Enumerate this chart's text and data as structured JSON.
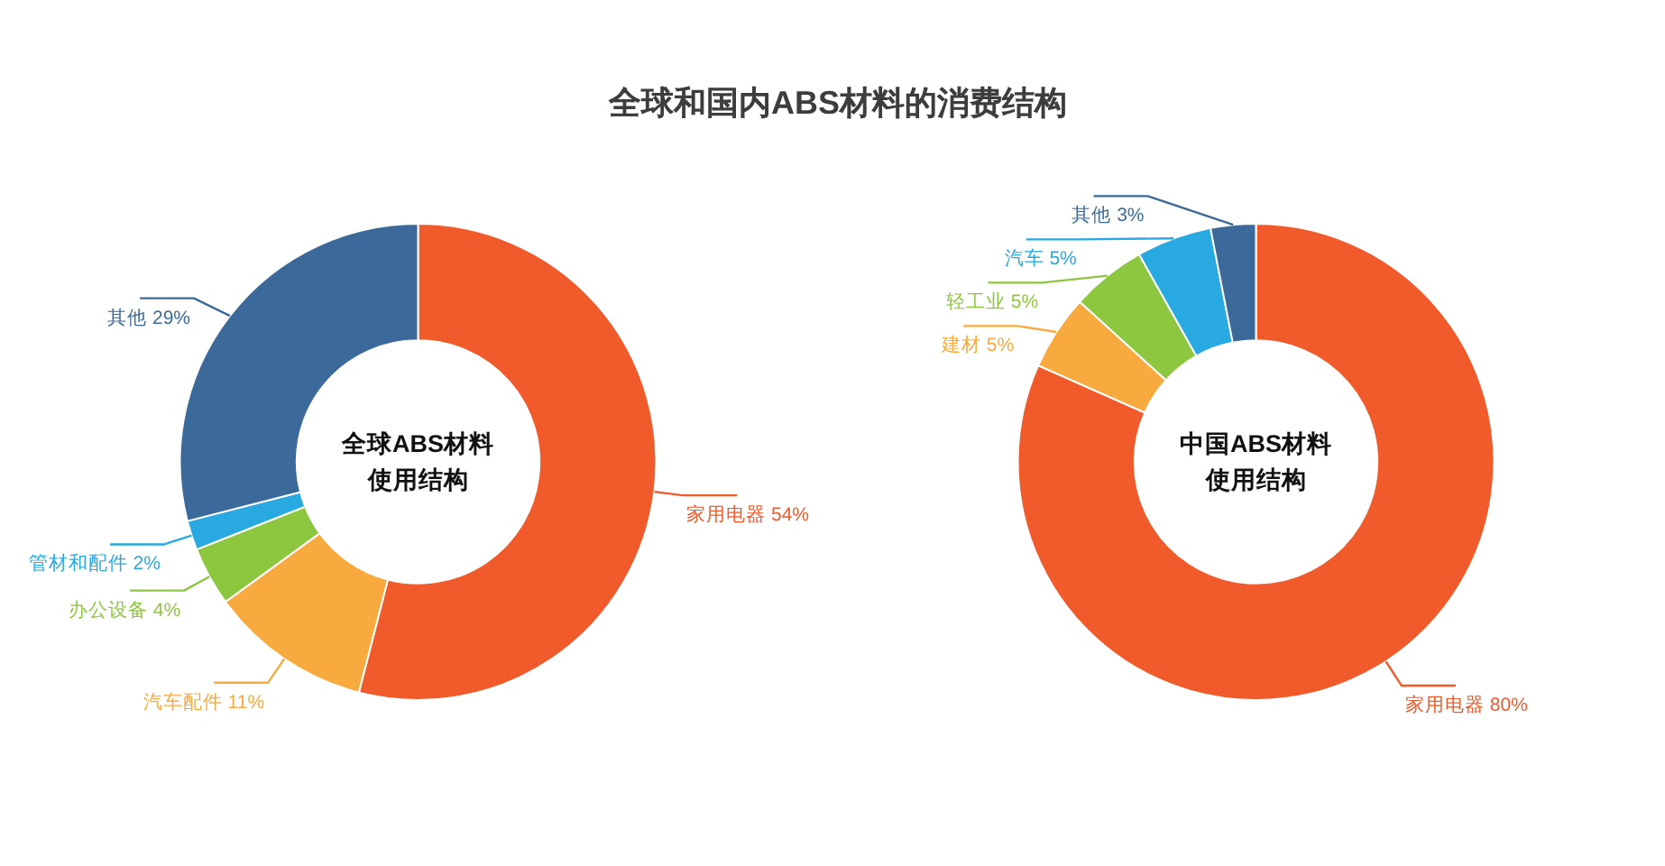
{
  "chart_data": [
    {
      "type": "donut",
      "title": "全球和国内ABS材料的消费结构",
      "annotations": [
        "全球ABS材料使用结构"
      ],
      "categories": [
        "家用电器",
        "汽车配件",
        "办公设备",
        "管材和配件",
        "其他"
      ],
      "values": [
        54,
        11,
        4,
        2,
        29
      ],
      "value_labels": [
        "54%",
        "11%",
        "4%",
        "2%",
        "29%"
      ],
      "colors": [
        "#f15a2a",
        "#f9aa3e",
        "#8dc63f",
        "#28a9e1",
        "#3b6a9a"
      ]
    },
    {
      "type": "donut",
      "annotations": [
        "中国ABS材料使用结构"
      ],
      "categories": [
        "家用电器",
        "建材",
        "轻工业",
        "汽车",
        "其他"
      ],
      "values": [
        80,
        5,
        5,
        5,
        3
      ],
      "value_labels": [
        "80%",
        "5%",
        "5%",
        "5%",
        "3%"
      ],
      "colors": [
        "#f15a2a",
        "#f9aa3e",
        "#8dc63f",
        "#28a9e1",
        "#3b6a9a"
      ]
    }
  ]
}
